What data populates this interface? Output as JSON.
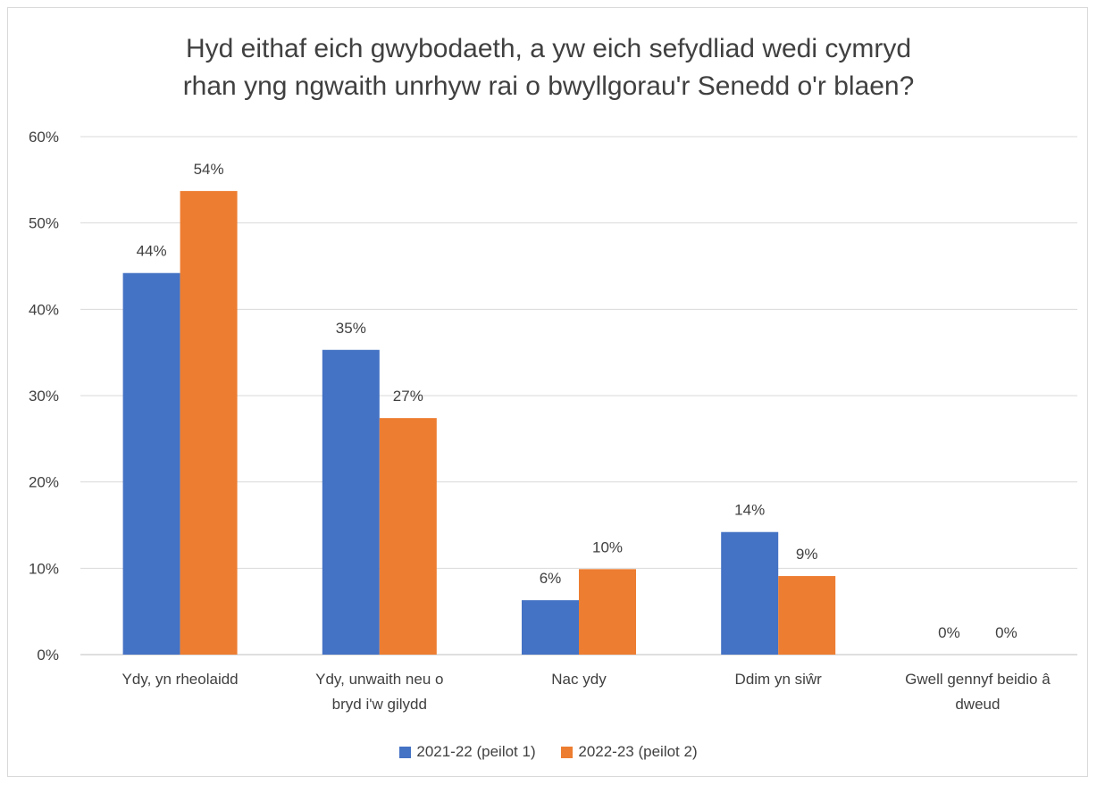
{
  "chart_data": {
    "type": "bar",
    "title_lines": [
      "Hyd eithaf eich gwybodaeth, a yw eich sefydliad wedi cymryd",
      "rhan yng ngwaith unrhyw rai o bwyllgorau'r Senedd o'r blaen?"
    ],
    "categories": [
      [
        "Ydy, yn rheolaidd"
      ],
      [
        "Ydy, unwaith neu o",
        "bryd i'w gilydd"
      ],
      [
        "Nac ydy"
      ],
      [
        "Ddim yn siŵr"
      ],
      [
        "Gwell gennyf beidio â",
        "dweud"
      ]
    ],
    "series": [
      {
        "name": "2021-22 (peilot 1)",
        "color": "#4472c4",
        "values": [
          44.2,
          35.3,
          6.3,
          14.2,
          0
        ],
        "labels": [
          "44%",
          "35%",
          "6%",
          "14%",
          "0%"
        ]
      },
      {
        "name": "2022-23 (peilot 2)",
        "color": "#ed7d31",
        "values": [
          53.7,
          27.4,
          9.9,
          9.1,
          0
        ],
        "labels": [
          "54%",
          "27%",
          "10%",
          "9%",
          "0%"
        ]
      }
    ],
    "ylim": [
      0,
      60
    ],
    "yticks": [
      0,
      10,
      20,
      30,
      40,
      50,
      60
    ],
    "ytick_labels": [
      "0%",
      "10%",
      "20%",
      "30%",
      "40%",
      "50%",
      "60%"
    ],
    "gridlines": true,
    "legend_position": "bottom"
  }
}
